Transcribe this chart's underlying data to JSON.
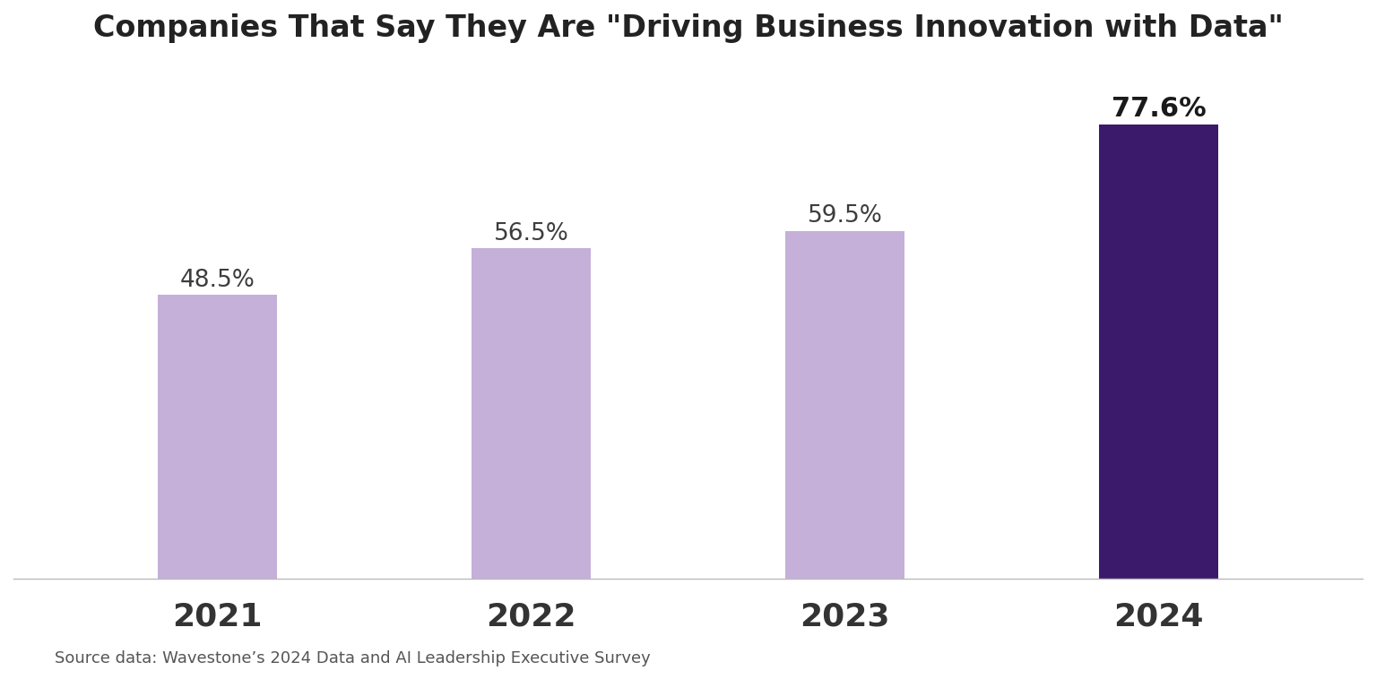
{
  "title": "Companies That Say They Are \"Driving Business Innovation with Data\"",
  "categories": [
    "2021",
    "2022",
    "2023",
    "2024"
  ],
  "values": [
    48.5,
    56.5,
    59.5,
    77.6
  ],
  "bar_colors": [
    "#c4b0d8",
    "#c4b0d8",
    "#c4b0d8",
    "#3b1a6b"
  ],
  "label_colors": [
    "#3d3d3d",
    "#3d3d3d",
    "#3d3d3d",
    "#1a1a1a"
  ],
  "label_fontweights": [
    "normal",
    "normal",
    "normal",
    "bold"
  ],
  "label_fontsizes": [
    19,
    19,
    19,
    22
  ],
  "title_fontsize": 24,
  "title_fontweight": "bold",
  "title_color": "#222222",
  "xlabel_fontsize": 26,
  "xlabel_fontweight": "bold",
  "xlabel_color": "#333333",
  "source_text": "Source data: Wavestone’s 2024 Data and AI Leadership Executive Survey",
  "source_fontsize": 13,
  "background_color": "#ffffff",
  "ylim": [
    0,
    88
  ],
  "bar_width": 0.38,
  "spine_color": "#bbbbbb"
}
